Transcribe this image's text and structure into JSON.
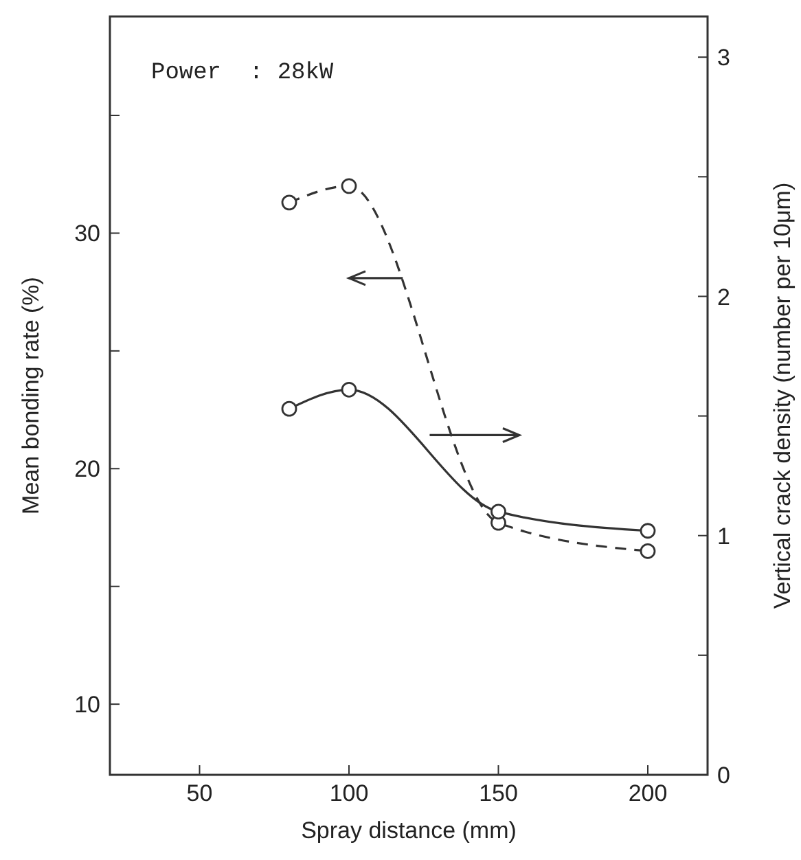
{
  "chart_data": {
    "type": "line",
    "xlabel": "Spray distance (mm)",
    "ylabel": "Mean bonding rate (%)",
    "y2label": "Vertical crack density (number per 10μm)",
    "annotations": [
      "Power  : 28kW"
    ],
    "x": [
      80,
      100,
      150,
      200
    ],
    "series": [
      {
        "color": "#333333",
        "values": [
          31.3,
          32.0,
          17.7,
          16.5
        ],
        "line_style": "dashed",
        "axis": "y"
      },
      {
        "color": "#333333",
        "values": [
          1.53,
          1.61,
          1.1,
          1.02
        ],
        "line_style": "solid",
        "axis": "y2"
      }
    ],
    "xlim": [
      20,
      220
    ],
    "xticks": [
      50,
      100,
      150,
      200
    ],
    "ylim": [
      7,
      39.2
    ],
    "yticks": [
      10,
      {
        "value": 15,
        "label": null
      },
      20,
      {
        "value": 25,
        "label": null
      },
      30,
      {
        "value": 35,
        "label": null
      }
    ],
    "y2lim": [
      0,
      3.17
    ],
    "y2ticks": [
      0,
      {
        "value": 0.5,
        "label": null
      },
      1,
      {
        "value": 1.5,
        "label": null
      },
      2,
      {
        "value": 2.5,
        "label": null
      },
      3
    ],
    "marker": "circle",
    "grid": false,
    "legend": false
  }
}
